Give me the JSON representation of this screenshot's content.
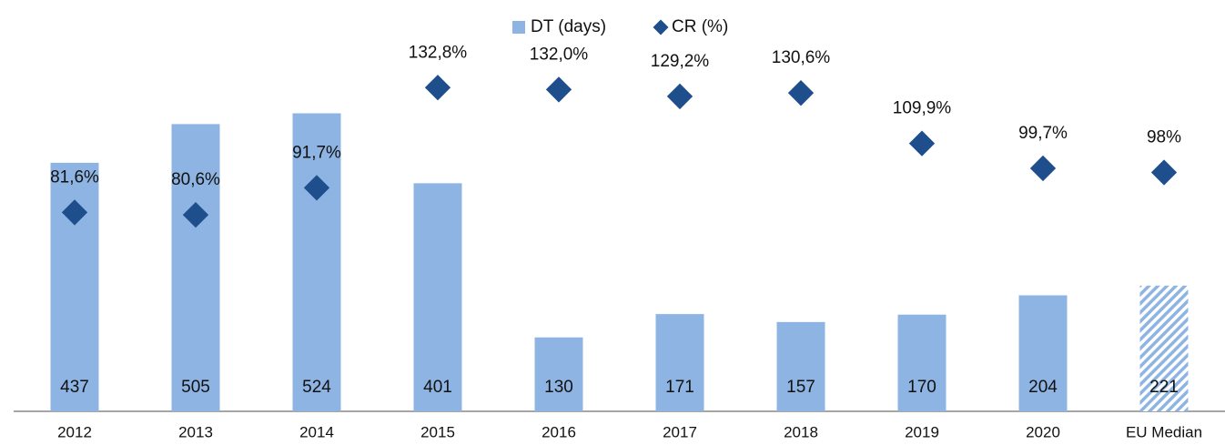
{
  "chart_data": {
    "type": "bar",
    "categories": [
      "2012",
      "2013",
      "2014",
      "2015",
      "2016",
      "2017",
      "2018",
      "2019",
      "2020",
      "EU Median"
    ],
    "series": [
      {
        "name": "DT (days)",
        "type": "bar",
        "color": "#8db4e2",
        "values": [
          437,
          505,
          524,
          401,
          130,
          171,
          157,
          170,
          204,
          221
        ]
      },
      {
        "name": "CR (%)",
        "type": "scatter",
        "axis": "y2",
        "color": "#1f4e8c",
        "values": [
          81.6,
          80.6,
          91.7,
          132.8,
          132.0,
          129.2,
          130.6,
          109.9,
          99.7,
          98
        ],
        "value_labels": [
          "81,6%",
          "80,6%",
          "91,7%",
          "132,8%",
          "132,0%",
          "129,2%",
          "130,6%",
          "109,9%",
          "99,7%",
          "98%"
        ]
      }
    ],
    "ylim": [
      0,
      600
    ],
    "y2lim": [
      0,
      140
    ],
    "legend": "top"
  }
}
